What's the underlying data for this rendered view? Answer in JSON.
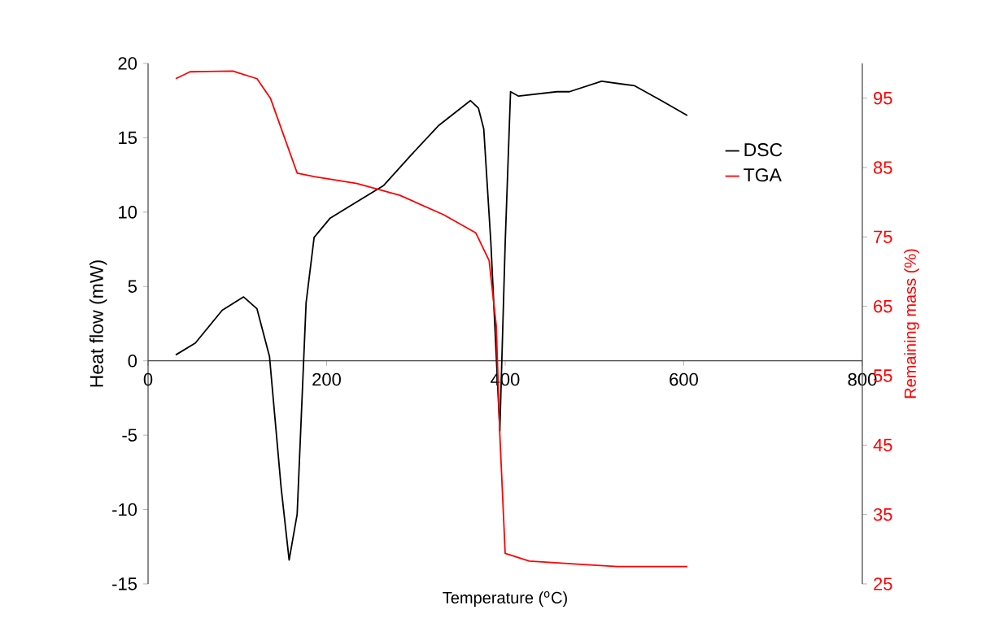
{
  "chart_data": {
    "type": "line",
    "xlabel": "Temperature ($^{o}$C)",
    "ylabel": "Heat flow (mW)",
    "y2label": "Remaining mass (%)",
    "xlim": [
      0,
      800
    ],
    "xticks": [
      0,
      200,
      400,
      600,
      800
    ],
    "ylim": [
      -15,
      20
    ],
    "yticks": [
      -15,
      -10,
      -5,
      0,
      5,
      10,
      15,
      20
    ],
    "y2lim": [
      25,
      100
    ],
    "y2ticks": [
      25,
      35,
      45,
      55,
      65,
      75,
      85,
      95
    ],
    "legend": "right",
    "series": [
      {
        "name": "DSC",
        "color": "#000000",
        "x": [
          31,
          53,
          83,
          107,
          122,
          136,
          149,
          158,
          167,
          177,
          186,
          204,
          234,
          264,
          294,
          325,
          361,
          370,
          376,
          384,
          394,
          400,
          406,
          415,
          458,
          472,
          508,
          545,
          575,
          604
        ],
        "values": [
          0.4,
          1.2,
          3.4,
          4.3,
          3.5,
          0.3,
          -8.5,
          -13.4,
          -10.3,
          3.9,
          8.3,
          9.6,
          10.7,
          11.8,
          13.8,
          15.8,
          17.5,
          17.0,
          15.6,
          7.9,
          -4.7,
          7.9,
          18.1,
          17.8,
          18.1,
          18.1,
          18.8,
          18.5,
          17.5,
          16.5
        ]
      },
      {
        "name": "TGA",
        "color": "#ff0000",
        "axis": "y2",
        "x": [
          31,
          47,
          95,
          122,
          137,
          152,
          167,
          186,
          234,
          282,
          331,
          367,
          382,
          390,
          394,
          400,
          427,
          488,
          526,
          604
        ],
        "values": [
          97.8,
          98.8,
          98.9,
          97.8,
          95.0,
          89.6,
          84.2,
          83.7,
          82.7,
          81.0,
          78.2,
          75.6,
          71.6,
          62.2,
          46.5,
          29.4,
          28.3,
          27.8,
          27.5,
          27.5
        ]
      }
    ]
  }
}
